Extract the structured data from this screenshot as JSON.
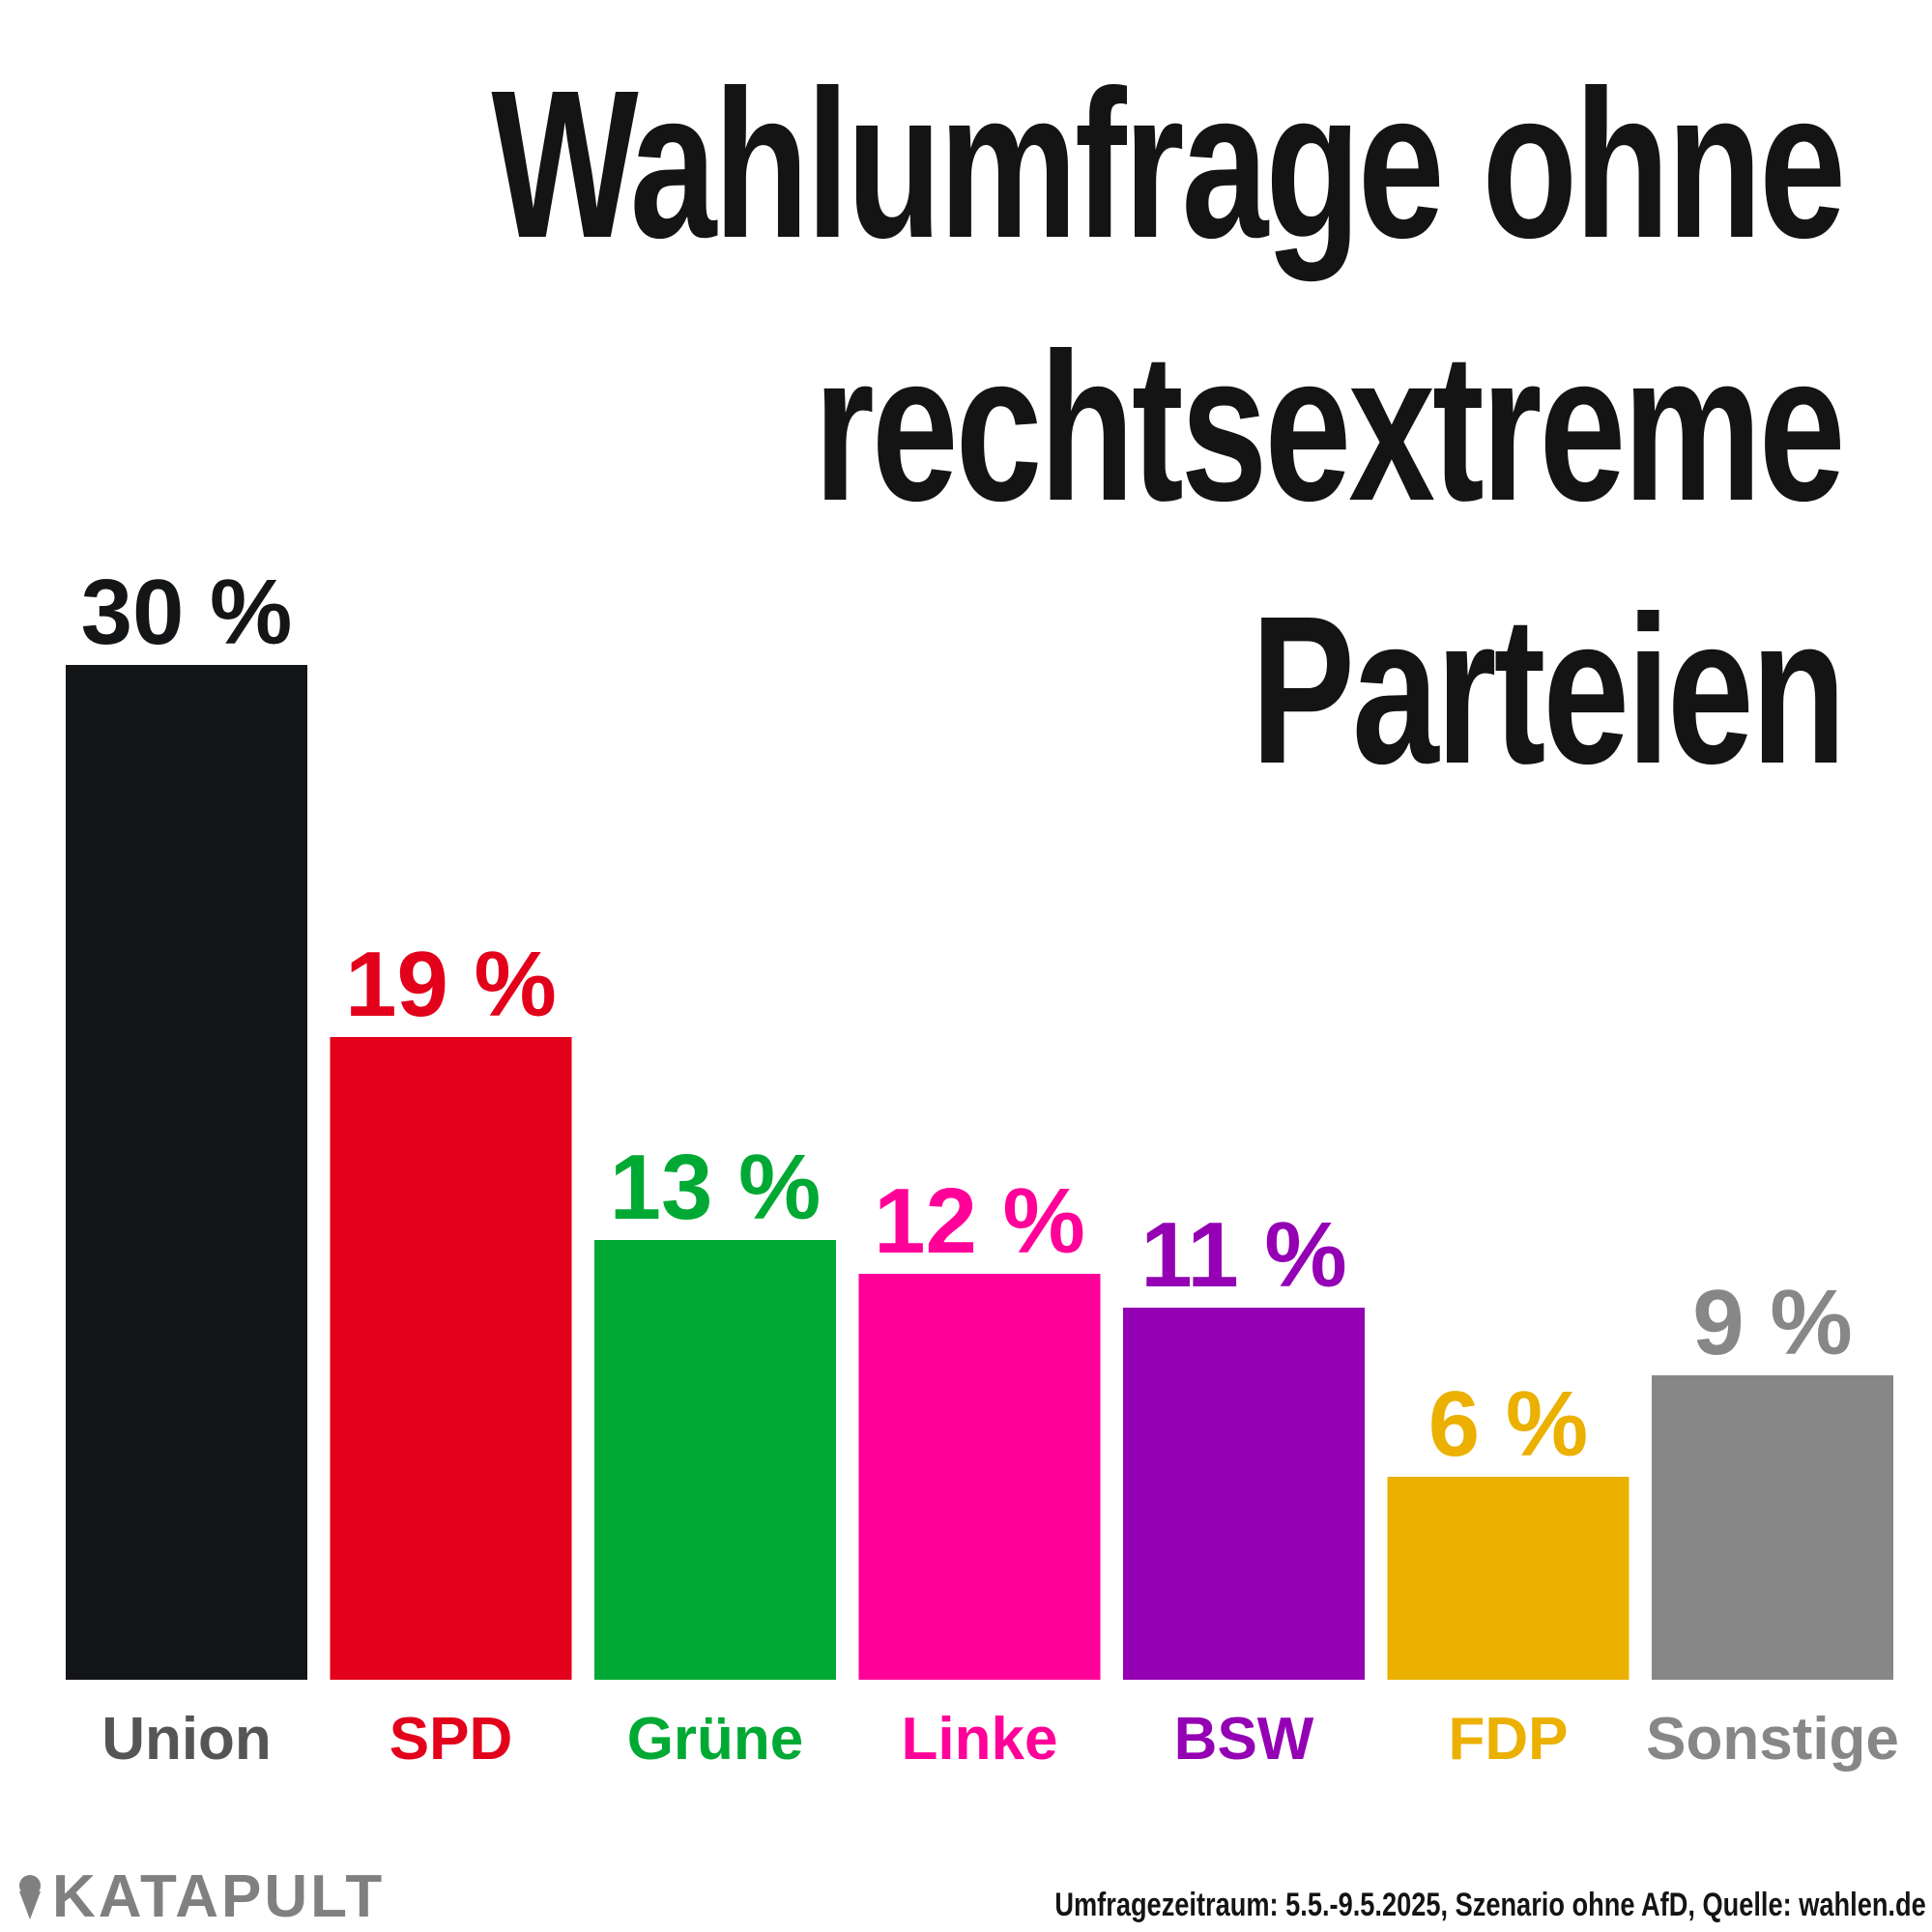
{
  "title_lines": [
    "Wahlumfrage ohne",
    "rechtsextreme",
    "Parteien"
  ],
  "chart_data": {
    "type": "bar",
    "title": "Wahlumfrage ohne rechtsextreme Parteien",
    "categories": [
      "Union",
      "SPD",
      "Grüne",
      "Linke",
      "BSW",
      "FDP",
      "Sonstige"
    ],
    "values": [
      30,
      19,
      13,
      12,
      11,
      6,
      9
    ],
    "value_labels": [
      "30 %",
      "19 %",
      "13 %",
      "12 %",
      "11 %",
      "6 %",
      "9 %"
    ],
    "unit": "%",
    "bar_colors": [
      "#141517",
      "#e2001a",
      "#00a934",
      "#ff0099",
      "#9400b4",
      "#ebb000",
      "#878787"
    ],
    "label_colors": [
      "#141517",
      "#e2001a",
      "#00a934",
      "#ff0099",
      "#9400b4",
      "#ebb000",
      "#878787"
    ],
    "category_label_colors": [
      "#555555",
      "#e2001a",
      "#00a934",
      "#ff0099",
      "#9400b4",
      "#ebb000",
      "#878787"
    ],
    "ylim": [
      0,
      30
    ],
    "grid": false,
    "legend": "none"
  },
  "footer": {
    "logo_text": "KATAPULT",
    "source": "Umfragezeitraum: 5.5.-9.5.2025, Szenario ohne AfD, Quelle: wahlen.de"
  },
  "colors": {
    "text_dark": "#141414",
    "logo_gray": "#808080"
  }
}
